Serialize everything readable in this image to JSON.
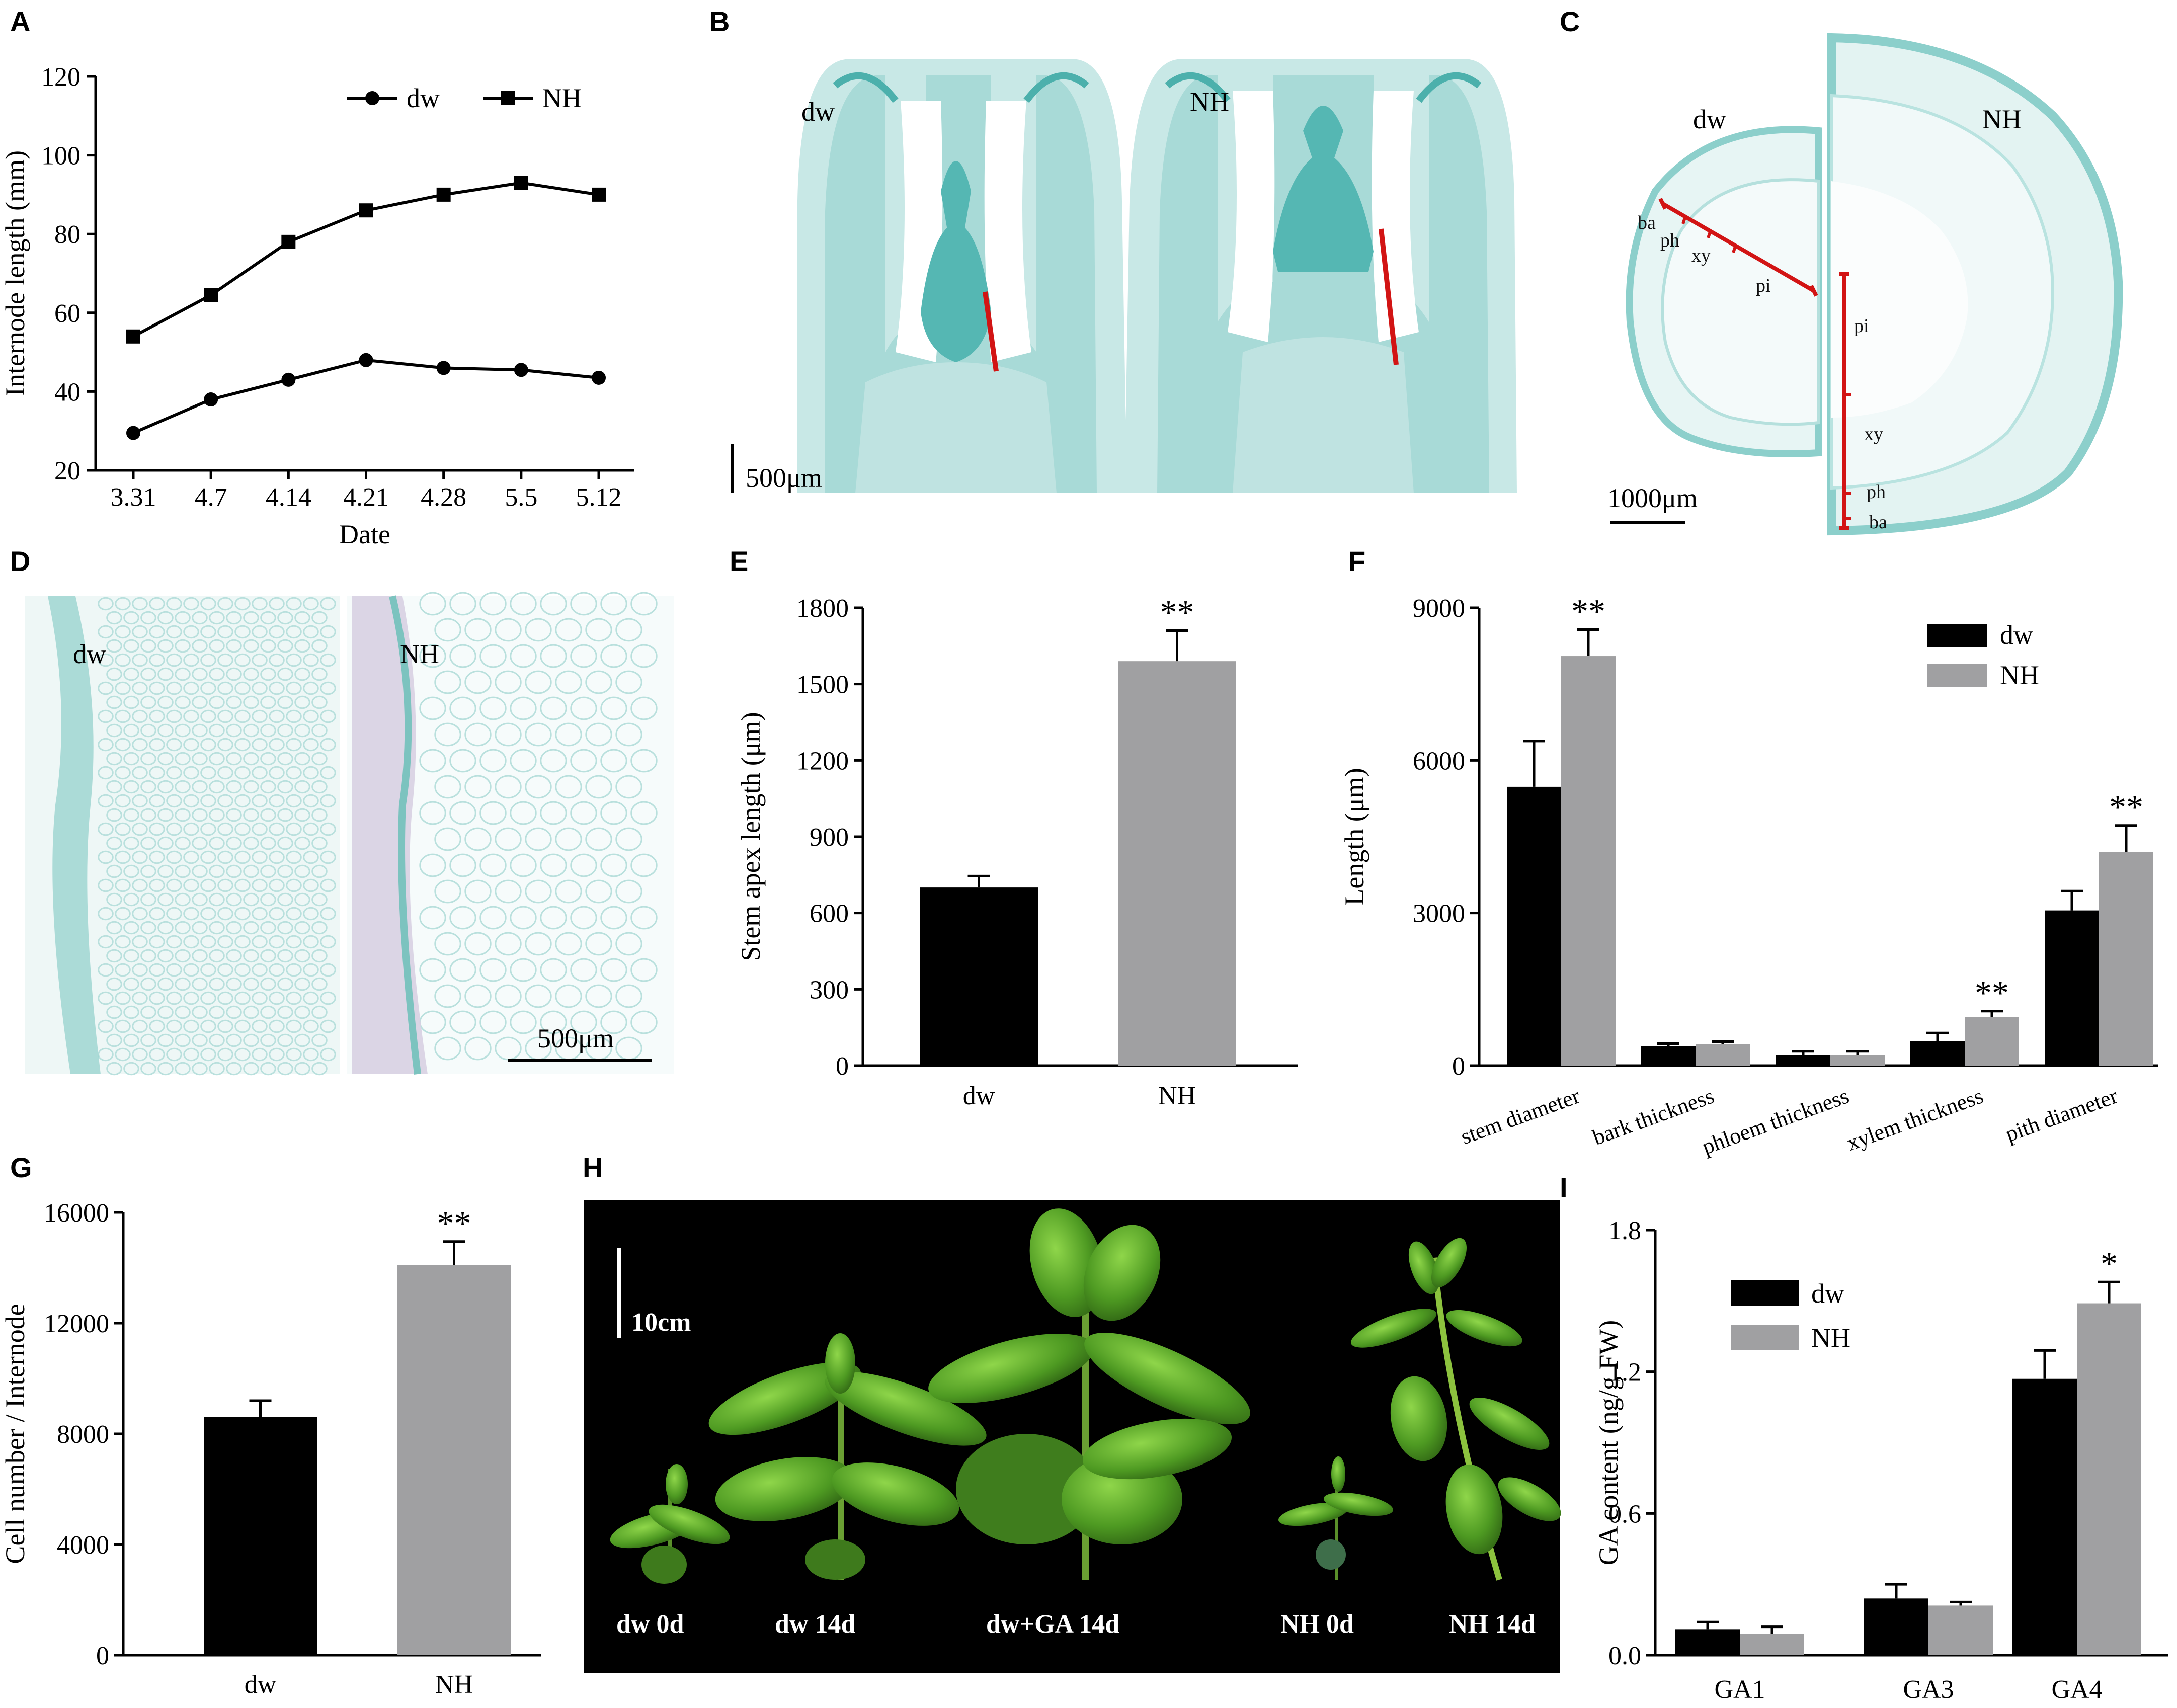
{
  "panels": {
    "A": "A",
    "B": "B",
    "C": "C",
    "D": "D",
    "E": "E",
    "F": "F",
    "G": "G",
    "H": "H",
    "I": "I"
  },
  "colors": {
    "dw": "#000000",
    "NH": "#a0a0a2",
    "tissue": "#7fc6c4",
    "tissue_light": "#d6eeee",
    "scale_red": "#d21414"
  },
  "chart_data": [
    {
      "id": "A",
      "type": "line",
      "xlabel": "Date",
      "ylabel": "Internode length (mm)",
      "categories": [
        "3.31",
        "4.7",
        "4.14",
        "4.21",
        "4.28",
        "5.5",
        "5.12"
      ],
      "ylim": [
        20,
        120
      ],
      "yticks": [
        "20",
        "40",
        "60",
        "80",
        "100",
        "120"
      ],
      "legend": "top-right",
      "series": [
        {
          "name": "dw",
          "marker": "circle",
          "values": [
            29.5,
            38,
            43,
            48,
            46,
            45.5,
            43.5
          ]
        },
        {
          "name": "NH",
          "marker": "square",
          "values": [
            54,
            64.5,
            78,
            86,
            90,
            93,
            90
          ]
        }
      ]
    },
    {
      "id": "E",
      "type": "bar",
      "xlabel": "",
      "ylabel": "Stem apex length (μm)",
      "categories": [
        "dw",
        "NH"
      ],
      "ylim": [
        0,
        1800
      ],
      "yticks": [
        "0",
        "300",
        "600",
        "900",
        "1200",
        "1500",
        "1800"
      ],
      "values": [
        700,
        1590
      ],
      "errors": [
        45,
        120
      ],
      "significance": [
        "",
        "**"
      ]
    },
    {
      "id": "F",
      "type": "bar",
      "xlabel": "",
      "ylabel": "Length (μm)",
      "categories": [
        "stem diameter",
        "bark thickness",
        "phloem thickness",
        "xylem thickness",
        "pith diameter"
      ],
      "ylim": [
        0,
        9000
      ],
      "yticks": [
        "0",
        "3000",
        "6000",
        "9000"
      ],
      "legend": "top-right",
      "series": [
        {
          "name": "dw",
          "values": [
            5480,
            380,
            200,
            480,
            3050
          ],
          "errors": [
            900,
            50,
            80,
            160,
            380
          ]
        },
        {
          "name": "NH",
          "values": [
            8050,
            420,
            200,
            950,
            4200
          ],
          "errors": [
            520,
            50,
            80,
            120,
            520
          ]
        }
      ],
      "significance": [
        "**",
        "",
        "",
        "**",
        "**"
      ]
    },
    {
      "id": "G",
      "type": "bar",
      "xlabel": "",
      "ylabel": "Cell number / Internode",
      "categories": [
        "dw",
        "NH"
      ],
      "ylim": [
        0,
        16000
      ],
      "yticks": [
        "0",
        "4000",
        "8000",
        "12000",
        "16000"
      ],
      "values": [
        8600,
        14100
      ],
      "errors": [
        600,
        850
      ],
      "significance": [
        "",
        "**"
      ]
    },
    {
      "id": "I",
      "type": "bar",
      "xlabel": "",
      "ylabel": "GA content (ng/g FW)",
      "categories": [
        "GA1",
        "GA3",
        "GA4"
      ],
      "ylim": [
        0,
        1.8
      ],
      "yticks": [
        "0.0",
        "0.6",
        "1.2",
        "1.8"
      ],
      "legend": "top-left",
      "series": [
        {
          "name": "dw",
          "values": [
            0.11,
            0.24,
            1.17
          ],
          "errors": [
            0.03,
            0.06,
            0.12
          ]
        },
        {
          "name": "NH",
          "values": [
            0.09,
            0.21,
            1.49
          ],
          "errors": [
            0.03,
            0.015,
            0.09
          ]
        }
      ],
      "significance": [
        "",
        "",
        "*"
      ]
    }
  ],
  "images": {
    "B": {
      "labels": [
        "dw",
        "NH"
      ],
      "scale": "500μm"
    },
    "C": {
      "labels": [
        "dw",
        "NH"
      ],
      "scale": "1000μm",
      "tissues_dw": [
        "ba",
        "ph",
        "xy",
        "pi"
      ],
      "tissues_nh": [
        "pi",
        "xy",
        "ph",
        "ba"
      ]
    },
    "D": {
      "labels": [
        "dw",
        "NH"
      ],
      "scale": "500μm"
    },
    "H": {
      "scale": "10cm",
      "labels": [
        "dw 0d",
        "dw 14d",
        "dw+GA 14d",
        "NH 0d",
        "NH 14d"
      ]
    }
  }
}
